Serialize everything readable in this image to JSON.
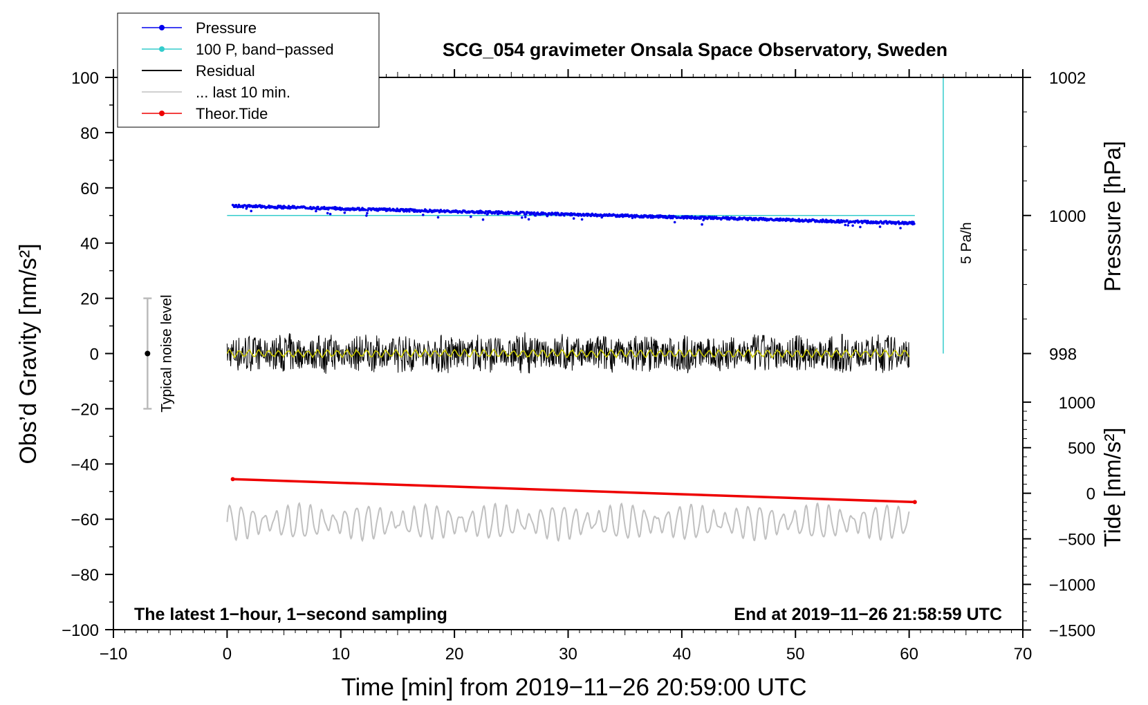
{
  "chart_data": {
    "type": "line",
    "title": "SCG_054 gravimeter Onsala Space Observatory, Sweden",
    "xlabel": "Time [min] from 2019−11−26 20:59:00 UTC",
    "ylabel_left": "Obs’d Gravity [nm/s²]",
    "ylabel_right_pressure": "Pressure [hPa]",
    "ylabel_right_tide": "Tide [nm/s²]",
    "xlim": [
      -10,
      70
    ],
    "ylim": [
      -100,
      100
    ],
    "x_ticks": [
      -10,
      0,
      10,
      20,
      30,
      40,
      50,
      60,
      70
    ],
    "x_tick_labels": [
      "−10",
      "0",
      "10",
      "20",
      "30",
      "40",
      "50",
      "60",
      "70"
    ],
    "y_ticks": [
      -100,
      -80,
      -60,
      -40,
      -20,
      0,
      20,
      40,
      60,
      80,
      100
    ],
    "y_tick_labels": [
      "−100",
      "−80",
      "−60",
      "−40",
      "−20",
      "0",
      "20",
      "40",
      "60",
      "80",
      "100"
    ],
    "pressure_axis": {
      "ticks": [
        998,
        1000,
        1002
      ],
      "tick_labels": [
        "998",
        "1000",
        "1002"
      ],
      "gravity_equiv_at_1000": 50,
      "gravity_per_hPa": 25
    },
    "tide_axis": {
      "ticks": [
        -1500,
        -1000,
        -500,
        0,
        500,
        1000
      ],
      "tick_labels": [
        "−1500",
        "−1000",
        "−500",
        "0",
        "500",
        "1000"
      ],
      "gravity_at_zero": -50.6,
      "gravity_per_1000": 33.0
    },
    "legend": {
      "placement": "top-left",
      "entries": [
        {
          "label": "Pressure",
          "color": "#0000ee",
          "marker": true
        },
        {
          "label": "100 P, band−passed",
          "color": "#33cccc",
          "marker": true
        },
        {
          "label": "Residual",
          "color": "#000000",
          "marker": false
        },
        {
          "label": "... last 10 min.",
          "color": "#c0c0c0",
          "marker": false
        },
        {
          "label": "Theor.Tide",
          "color": "#ee0000",
          "marker": true
        }
      ]
    },
    "series": [
      {
        "name": "Pressure",
        "color": "#0000ee",
        "x_range": [
          0.5,
          60.5
        ],
        "y_start": 53.5,
        "y_end": 47.2
      },
      {
        "name": "100 P, band−passed",
        "color": "#33cccc",
        "x_range": [
          0,
          60.5
        ],
        "y_value": 50
      },
      {
        "name": "Residual",
        "color": "#000000",
        "x_range": [
          0,
          60
        ],
        "y_center": 0,
        "amplitude": 6
      },
      {
        "name": "Residual smoothed",
        "color": "#cccc00",
        "x_range": [
          0,
          60
        ],
        "y_center": 0,
        "amplitude": 1.5
      },
      {
        "name": "... last 10 min.",
        "color": "#c0c0c0",
        "x_range": [
          0,
          60
        ],
        "y_center": -61,
        "amplitude": 6
      },
      {
        "name": "Theor.Tide",
        "color": "#ee0000",
        "x_range": [
          0.5,
          60.5
        ],
        "y_start": -45.5,
        "y_end": -53.8
      }
    ],
    "scale_bar": {
      "label": "5 Pa/h",
      "x": 63,
      "y_from": 0,
      "y_to": 100,
      "color": "#33cccc"
    },
    "noise_indicator": {
      "label": "Typical noise level",
      "x": -7,
      "y_center": 0,
      "y_low": -20,
      "y_high": 20
    },
    "annotations": {
      "bottom_left": "The latest 1−hour, 1−second sampling",
      "bottom_right": "End at 2019−11−26 21:58:59 UTC"
    }
  }
}
